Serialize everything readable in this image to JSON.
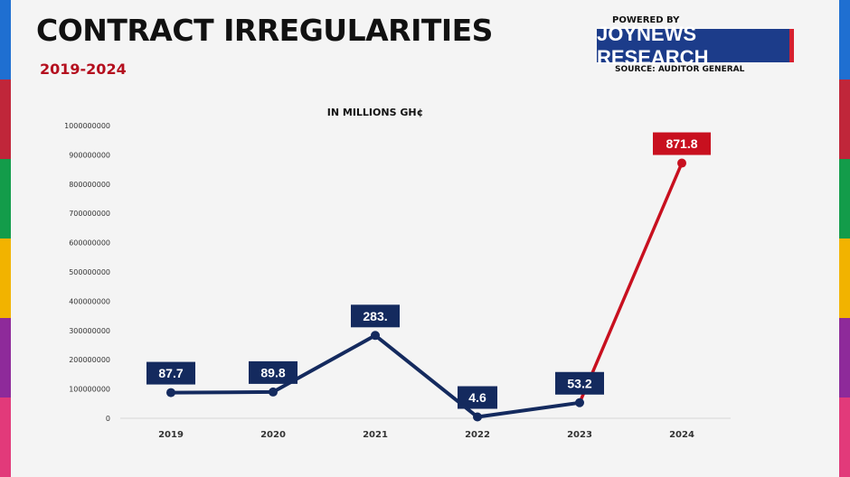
{
  "title": "CONTRACT IRREGULARITIES",
  "subtitle": "2019-2024",
  "powered_by": "POWERED BY",
  "brand": "JOYNEWS RESEARCH",
  "source": "SOURCE: AUDITOR GENERAL",
  "colors": {
    "navy": "#142a5e",
    "red": "#c8101f",
    "stripes": [
      "#1f6fd1",
      "#c0263a",
      "#139c4a",
      "#f2b300",
      "#8e2a9a",
      "#e23a7a"
    ]
  },
  "chart_data": {
    "type": "line",
    "title": "IN MILLIONS GH¢",
    "categories": [
      "2019",
      "2020",
      "2021",
      "2022",
      "2023",
      "2024"
    ],
    "values": [
      87700000,
      89800000,
      283000000,
      4600000,
      53200000,
      871800000
    ],
    "data_labels": [
      "87.7",
      "89.8",
      "283.",
      "4.6",
      "53.2",
      "871.8"
    ],
    "highlight_index": 5,
    "y_ticks": [
      "0",
      "100000000",
      "200000000",
      "300000000",
      "400000000",
      "500000000",
      "600000000",
      "700000000",
      "800000000",
      "900000000",
      "1000000000"
    ],
    "ylim": [
      0,
      1000000000
    ],
    "grid": false,
    "legend": "none"
  }
}
